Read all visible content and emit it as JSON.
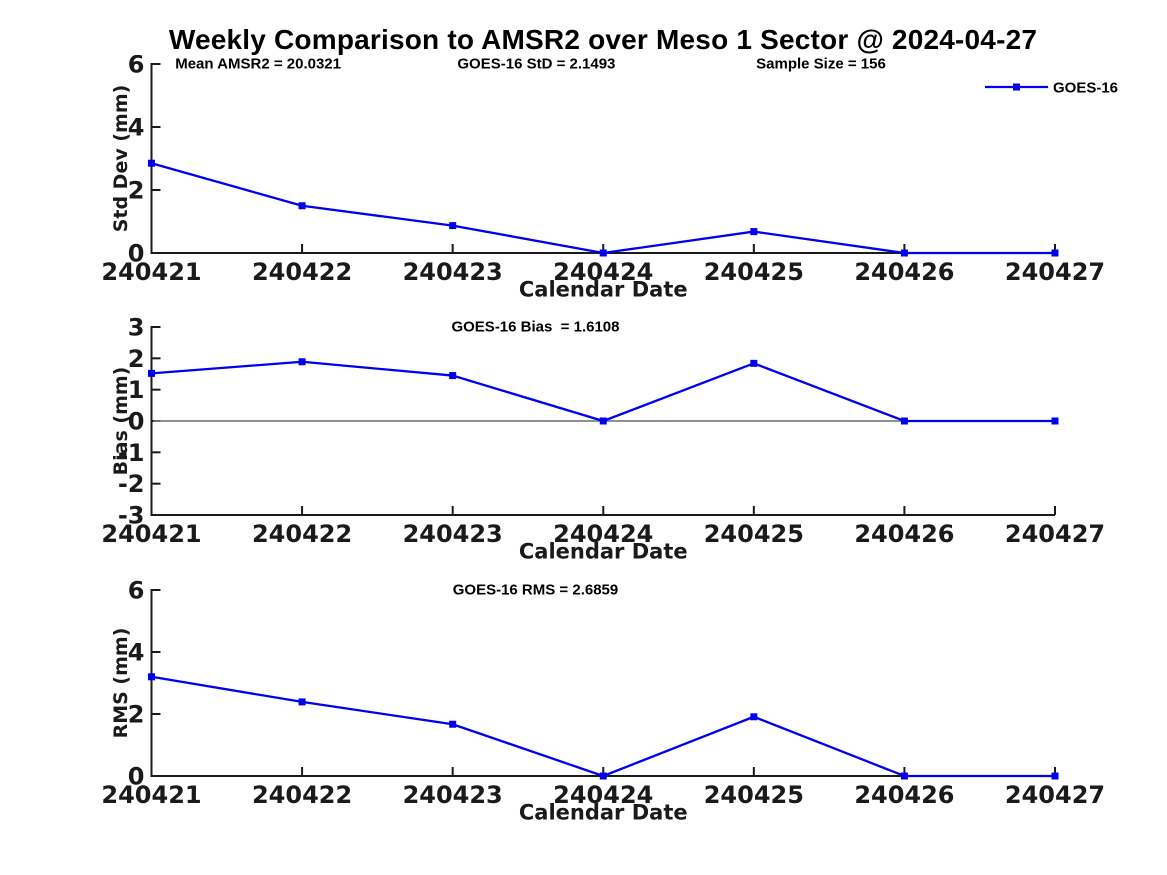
{
  "figure": {
    "title": "Weekly Comparison to AMSR2 over Meso 1 Sector @ 2024-04-27",
    "background": "#ffffff",
    "line_color": "#0000ee",
    "axis_color": "#1a1a1a",
    "zero_line_color": "#808080",
    "text_color": "#000000"
  },
  "chart_data": [
    {
      "type": "line",
      "categories": [
        "240421",
        "240422",
        "240423",
        "240424",
        "240425",
        "240426",
        "240427"
      ],
      "series": [
        {
          "name": "GOES-16",
          "values": [
            2.85,
            1.5,
            0.87,
            0,
            0.68,
            0,
            0
          ]
        }
      ],
      "xlabel": "Calendar Date",
      "ylabel": "Std Dev (mm)",
      "ylim": [
        0,
        6
      ],
      "yticks": [
        0,
        2,
        4,
        6
      ],
      "annotations": [
        "Mean AMSR2 = 20.0321",
        "GOES-16 StD = 2.1493",
        "Sample Size = 156"
      ],
      "legend": {
        "visible": true,
        "position": "top-right",
        "entries": [
          "GOES-16"
        ]
      },
      "marker": "square",
      "grid": false,
      "zero_line": false
    },
    {
      "type": "line",
      "categories": [
        "240421",
        "240422",
        "240423",
        "240424",
        "240425",
        "240426",
        "240427"
      ],
      "series": [
        {
          "name": "GOES-16",
          "values": [
            1.52,
            1.89,
            1.45,
            0,
            1.84,
            0,
            0
          ]
        }
      ],
      "xlabel": "Calendar Date",
      "ylabel": "Bias (mm)",
      "ylim": [
        -3,
        3
      ],
      "yticks": [
        3,
        2,
        1,
        0,
        -1,
        -2,
        -3
      ],
      "annotations": [
        "GOES-16 Bias  = 1.6108"
      ],
      "legend": {
        "visible": false,
        "position": "",
        "entries": []
      },
      "marker": "square",
      "grid": false,
      "zero_line": true
    },
    {
      "type": "line",
      "categories": [
        "240421",
        "240422",
        "240423",
        "240424",
        "240425",
        "240426",
        "240427"
      ],
      "series": [
        {
          "name": "GOES-16",
          "values": [
            3.2,
            2.39,
            1.67,
            0,
            1.91,
            0,
            0
          ]
        }
      ],
      "xlabel": "Calendar Date",
      "ylabel": "RMS (mm)",
      "ylim": [
        0,
        6
      ],
      "yticks": [
        0,
        2,
        4,
        6
      ],
      "annotations": [
        "GOES-16 RMS = 2.6859"
      ],
      "legend": {
        "visible": false,
        "position": "",
        "entries": []
      },
      "marker": "square",
      "grid": false,
      "zero_line": false
    }
  ]
}
